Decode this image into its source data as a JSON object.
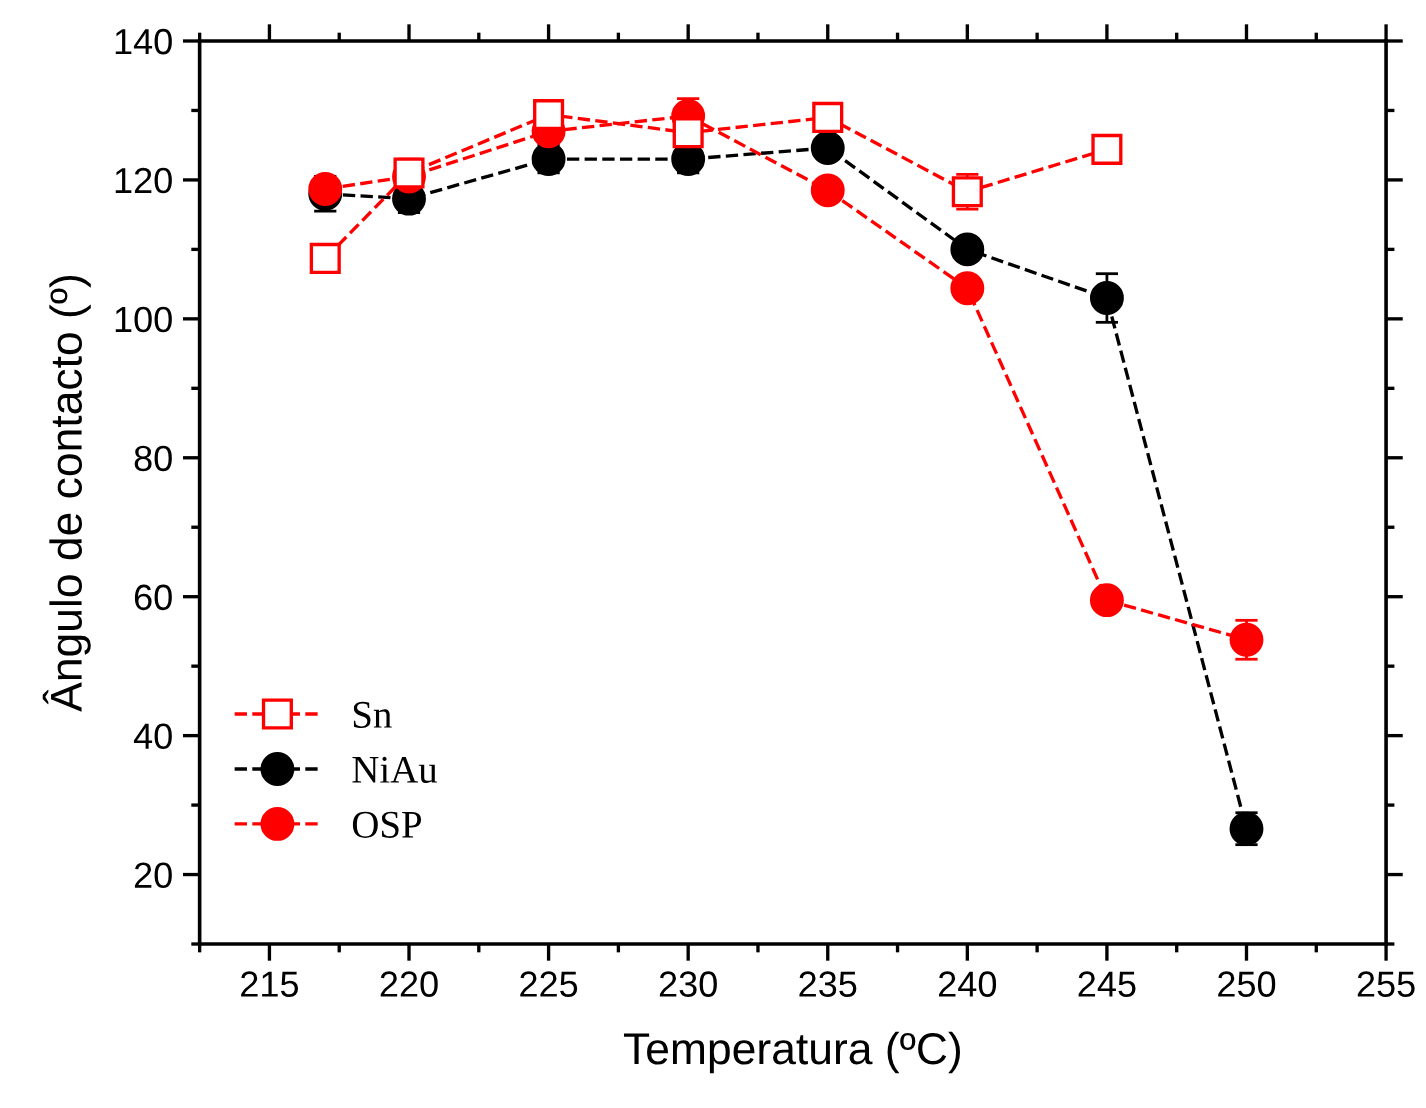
{
  "chart_data": {
    "type": "line",
    "xlabel": "Temperatura (ºC)",
    "ylabel": "Ângulo de contacto (º)",
    "x": [
      217,
      220,
      225,
      230,
      235,
      240,
      245,
      250
    ],
    "xlim": [
      212.5,
      255
    ],
    "xticks": [
      215,
      220,
      225,
      230,
      235,
      240,
      245,
      250,
      255
    ],
    "ylim": [
      10,
      140
    ],
    "yticks": [
      20,
      40,
      60,
      80,
      100,
      120,
      140
    ],
    "line_style": "dashed",
    "grid": false,
    "legend": "bottom left",
    "series": [
      {
        "name": "Sn",
        "color": "#ff0000",
        "marker": "square",
        "values": [
          108.7,
          121,
          129.4,
          126.8,
          129,
          118.3,
          124.4,
          null
        ],
        "errors": [
          null,
          2,
          2,
          2,
          2,
          2.5,
          null,
          null
        ]
      },
      {
        "name": "NiAu",
        "color": "#000000",
        "marker": "circle",
        "values": [
          118,
          117.3,
          123,
          123,
          124.6,
          110,
          103,
          26.6
        ],
        "errors": [
          2.5,
          2,
          2,
          2,
          1.5,
          1,
          3.5,
          2.3
        ]
      },
      {
        "name": "OSP",
        "color": "#ff0000",
        "marker": "circle",
        "values": [
          118.7,
          120.5,
          127,
          129.2,
          118.5,
          104.4,
          59.5,
          53.8
        ],
        "errors": [
          1.5,
          1.5,
          1.5,
          2.5,
          1,
          1,
          1,
          2.8
        ]
      }
    ]
  }
}
